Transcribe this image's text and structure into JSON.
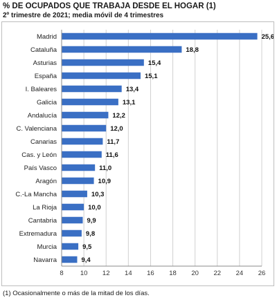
{
  "header": {
    "title": "% DE OCUPADOS QUE TRABAJA DESDE EL HOGAR (1)",
    "subtitle": "2º trimestre de 2021; media móvil de 4 trimestres"
  },
  "footnote": "(1) Ocasionalmente o más de la mitad de los días.",
  "colors": {
    "bar": "#3a6fc4",
    "grid": "#d0d0d0",
    "axis": "#888888"
  },
  "chart_data": {
    "type": "bar",
    "orientation": "horizontal",
    "title": "% DE OCUPADOS QUE TRABAJA DESDE EL HOGAR (1)",
    "subtitle": "2º trimestre de 2021; media móvil de 4 trimestres",
    "categories": [
      "Madrid",
      "Cataluña",
      "Asturias",
      "España",
      "I. Baleares",
      "Galicia",
      "Andalucía",
      "C. Valenciana",
      "Canarias",
      "Cas. y León",
      "País Vasco",
      "Aragón",
      "C.-La Mancha",
      "La Rioja",
      "Cantabria",
      "Extremadura",
      "Murcia",
      "Navarra"
    ],
    "values": [
      25.6,
      18.8,
      15.4,
      15.1,
      13.4,
      13.1,
      12.2,
      12.0,
      11.7,
      11.6,
      11.0,
      10.9,
      10.3,
      10.0,
      9.9,
      9.8,
      9.5,
      9.4
    ],
    "value_labels": [
      "25,6",
      "18,8",
      "15,4",
      "15,1",
      "13,4",
      "13,1",
      "12,2",
      "12,0",
      "11,7",
      "11,6",
      "11,0",
      "10,9",
      "10,3",
      "10,0",
      "9,9",
      "9,8",
      "9,5",
      "9,4"
    ],
    "xlim": [
      8,
      26
    ],
    "xticks": [
      8,
      10,
      12,
      14,
      16,
      18,
      20,
      22,
      24,
      26
    ],
    "grid": true,
    "xlabel": "",
    "ylabel": ""
  }
}
